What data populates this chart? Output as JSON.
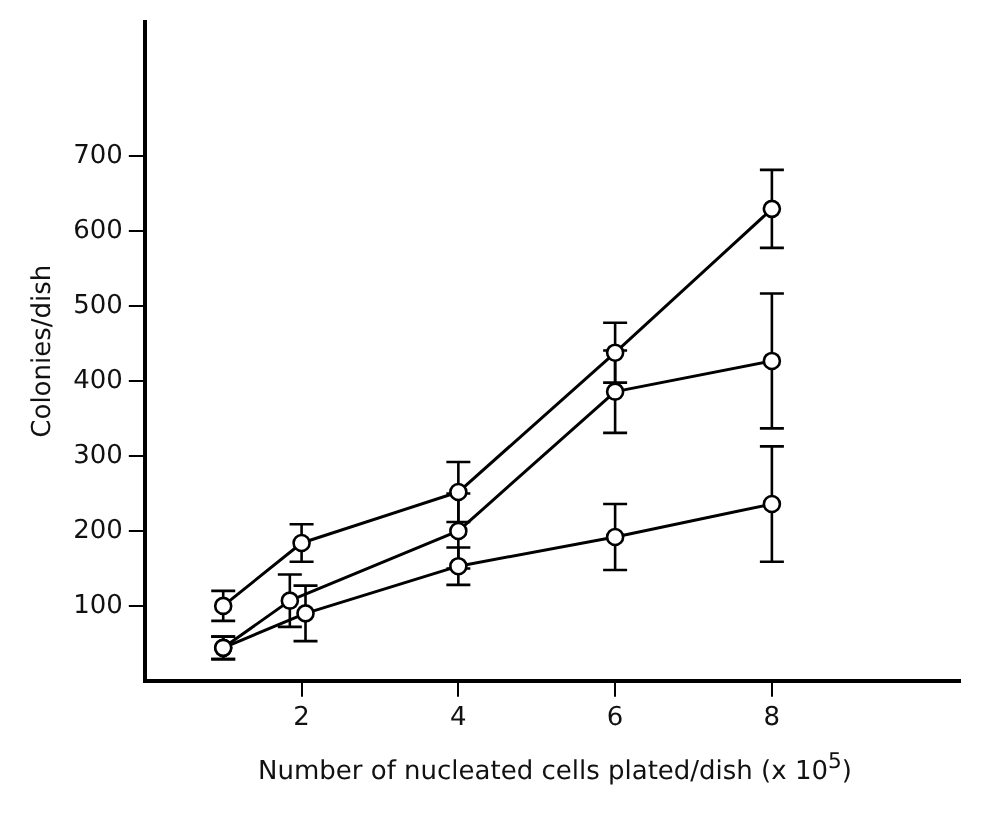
{
  "chart_data": {
    "type": "line",
    "xlabel": "Number of nucleated cells plated/dish (x 10$^{5}$)",
    "ylabel": "Colonies/dish",
    "xlim": [
      0,
      10.4
    ],
    "xticks": [
      2,
      4,
      6,
      8
    ],
    "ylim": [
      0,
      880
    ],
    "yticks": [
      100,
      200,
      300,
      400,
      500,
      600,
      700
    ],
    "grid": false,
    "legend": false,
    "marker": "circle",
    "line_style": "solid",
    "series": [
      {
        "color": "#000000",
        "x": [
          1,
          2,
          4,
          6,
          8
        ],
        "values": [
          100,
          184,
          252,
          438,
          630
        ],
        "errors": [
          20,
          25,
          40,
          40,
          52
        ]
      },
      {
        "color": "#000000",
        "x": [
          1,
          1.85,
          4,
          6,
          8
        ],
        "values": [
          44,
          107,
          200,
          386,
          427
        ],
        "errors": [
          15,
          35,
          50,
          55,
          90
        ]
      },
      {
        "color": "#000000",
        "x": [
          1,
          2.05,
          4,
          6,
          8
        ],
        "values": [
          44,
          90,
          153,
          192,
          236
        ],
        "errors": [
          15,
          37,
          25,
          44,
          77
        ]
      }
    ]
  }
}
